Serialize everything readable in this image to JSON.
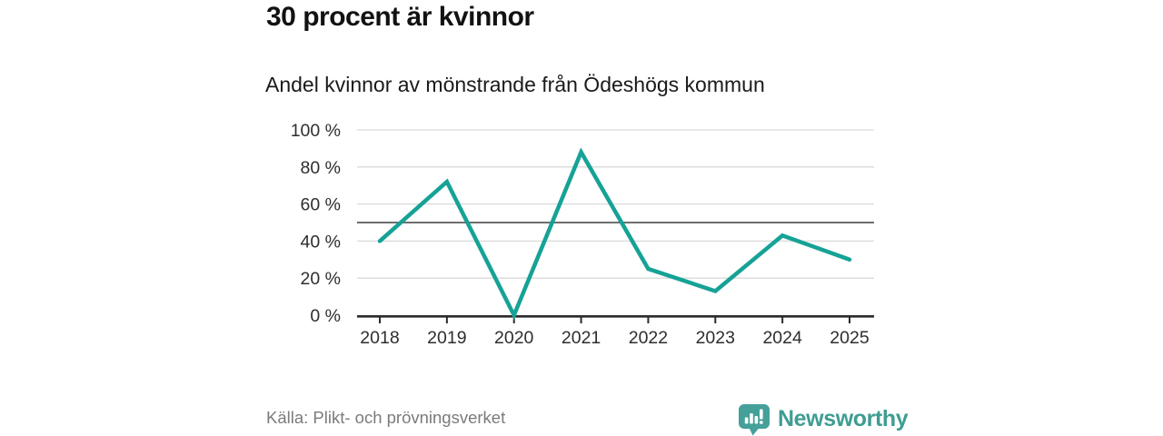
{
  "header": {
    "title": "30 procent är kvinnor",
    "subtitle": "Andel kvinnor av mönstrande från Ödeshögs kommun"
  },
  "chart_data": {
    "type": "line",
    "title": "Andel kvinnor av mönstrande från Ödeshögs kommun",
    "x": [
      "2018",
      "2019",
      "2020",
      "2021",
      "2022",
      "2023",
      "2024",
      "2025"
    ],
    "series": [
      {
        "name": "Andel kvinnor av mönstrande",
        "values": [
          40,
          72,
          0,
          88,
          25,
          13,
          43,
          30
        ],
        "color": "#16a296"
      }
    ],
    "xlabel": "",
    "ylabel": "",
    "ylim": [
      0,
      100
    ],
    "yticks": [
      0,
      20,
      40,
      60,
      80,
      100
    ],
    "ytick_suffix": " %",
    "reference_line": 50,
    "grid": true,
    "legend": "none",
    "line_width": 4.5,
    "colors": {
      "grid": "#d9d9d9",
      "reference": "#595959",
      "axis": "#2b2b2b",
      "tick_text": "#2e2e2e"
    }
  },
  "footer": {
    "source": "Källa: Plikt- och prövningsverket",
    "brand": "Newsworthy",
    "brand_icon": "speech-bubble-bar-chart",
    "brand_text_color": "#3f9d93",
    "brand_icon_color": "#45a09a"
  }
}
